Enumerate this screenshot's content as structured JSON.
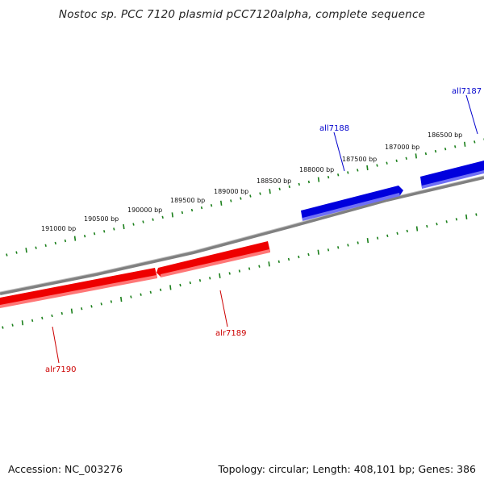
{
  "title": "Nostoc sp. PCC 7120 plasmid pCC7120alpha, complete sequence",
  "footer": {
    "accession": "Accession: NC_003276",
    "summary": "Topology: circular; Length: 408,101 bp; Genes: 386"
  },
  "colors": {
    "backbone": "#808080",
    "ticks": "#1a7f1a",
    "forward_gene": "#ee0000",
    "reverse_gene": "#0000dd",
    "forward_label": "#cc0000",
    "reverse_label": "#0000cc"
  },
  "scale_labels": [
    "191000 bp",
    "190500 bp",
    "190000 bp",
    "189500 bp",
    "189000 bp",
    "188500 bp",
    "188000 bp",
    "187500 bp",
    "187000 bp",
    "186500 bp"
  ],
  "genes": [
    {
      "name": "all7187",
      "strand": "reverse"
    },
    {
      "name": "all7188",
      "strand": "reverse"
    },
    {
      "name": "alr7189",
      "strand": "forward"
    },
    {
      "name": "alr7190",
      "strand": "forward"
    }
  ]
}
